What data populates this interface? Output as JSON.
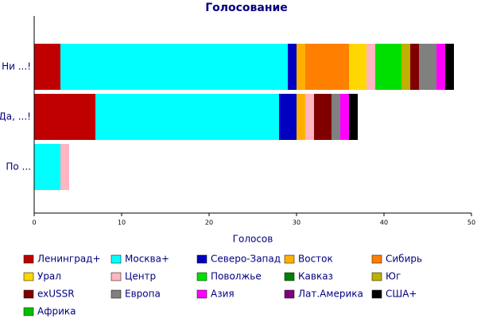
{
  "chart_data": {
    "type": "bar",
    "orientation": "horizontal",
    "stacked": true,
    "title": "Голосование",
    "x_label": "Голосов",
    "categories": [
      "Ни ...!",
      "Да, ...!",
      "По ..."
    ],
    "xlim": [
      0,
      50
    ],
    "xticks": [
      0,
      10,
      20,
      30,
      40,
      50
    ],
    "grid": false,
    "series": [
      {
        "name": "Ленинград+",
        "color": "#c00000",
        "values": [
          3,
          7,
          0
        ]
      },
      {
        "name": "Москва+",
        "color": "#00ffff",
        "values": [
          26,
          21,
          3
        ]
      },
      {
        "name": "Северо-Запад",
        "color": "#0000c0",
        "values": [
          1,
          2,
          0
        ]
      },
      {
        "name": "Восток",
        "color": "#ffb000",
        "values": [
          1,
          1,
          0
        ]
      },
      {
        "name": "Сибирь",
        "color": "#ff8000",
        "values": [
          5,
          0,
          0
        ]
      },
      {
        "name": "Урал",
        "color": "#ffd700",
        "values": [
          2,
          0,
          0
        ]
      },
      {
        "name": "Центр",
        "color": "#ffb6c1",
        "values": [
          1,
          1,
          1
        ]
      },
      {
        "name": "Поволжье",
        "color": "#00e000",
        "values": [
          3,
          0,
          0
        ]
      },
      {
        "name": "Кавказ",
        "color": "#008000",
        "values": [
          0,
          0,
          0
        ]
      },
      {
        "name": "Юг",
        "color": "#c0b000",
        "values": [
          1,
          0,
          0
        ]
      },
      {
        "name": "exUSSR",
        "color": "#800000",
        "values": [
          1,
          2,
          0
        ]
      },
      {
        "name": "Европа",
        "color": "#808080",
        "values": [
          2,
          1,
          0
        ]
      },
      {
        "name": "Азия",
        "color": "#ff00ff",
        "values": [
          1,
          1,
          0
        ]
      },
      {
        "name": "Лат.Америка",
        "color": "#800080",
        "values": [
          0,
          0,
          0
        ]
      },
      {
        "name": "США+",
        "color": "#000000",
        "values": [
          1,
          1,
          0
        ]
      },
      {
        "name": "Африка",
        "color": "#00c000",
        "values": [
          0,
          0,
          0
        ]
      }
    ]
  }
}
